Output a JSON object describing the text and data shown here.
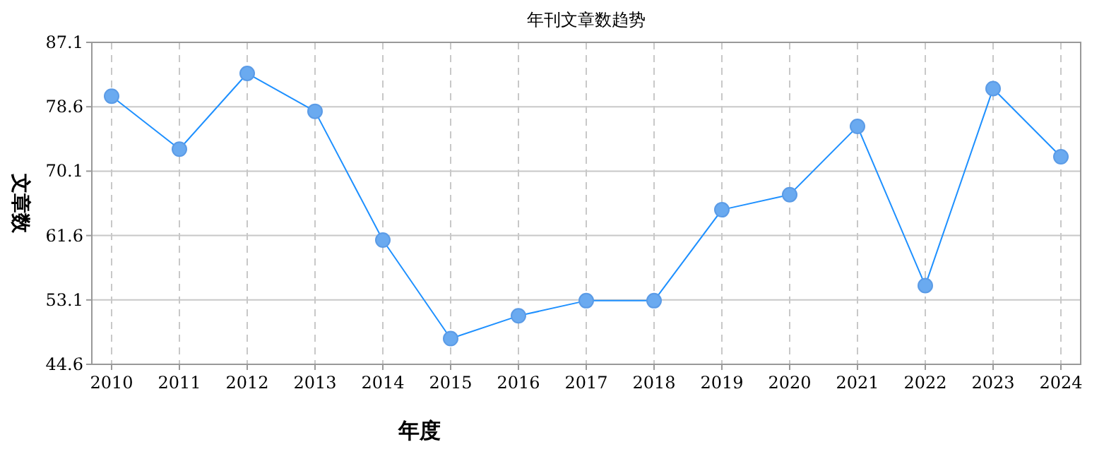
{
  "chart_data": {
    "type": "line",
    "title": "年刊文章数趋势",
    "xlabel": "年度",
    "ylabel": "文章数",
    "categories": [
      "2010",
      "2011",
      "2012",
      "2013",
      "2014",
      "2015",
      "2016",
      "2017",
      "2018",
      "2019",
      "2020",
      "2021",
      "2022",
      "2023",
      "2024"
    ],
    "series": [
      {
        "color": "#1e90ff",
        "values": [
          80,
          73,
          83,
          78,
          61,
          48,
          51,
          53,
          53,
          65,
          67,
          76,
          55,
          81,
          72
        ]
      }
    ],
    "ylim": [
      44.6,
      87.1
    ],
    "yticks": [
      44.6,
      53.1,
      61.6,
      70.1,
      78.6,
      87.1
    ],
    "grid": true,
    "marker": "circle",
    "line_style": "solid"
  }
}
